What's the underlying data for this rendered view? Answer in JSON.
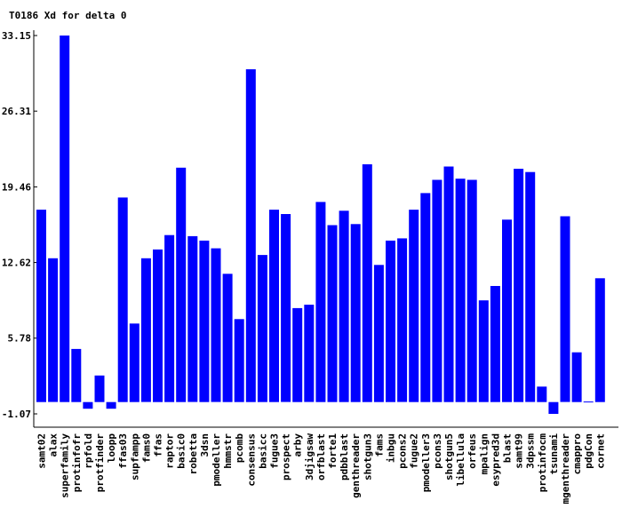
{
  "chart_data": {
    "type": "bar",
    "title": "T0186 Xd for delta 0",
    "xlabel": "",
    "ylabel": "",
    "ylim": [
      -1.07,
      33.15
    ],
    "yticks": [
      "33.15",
      "26.31",
      "19.46",
      "12.62",
      "5.78",
      "-1.07"
    ],
    "grid": false,
    "colors": {
      "bar": "#0000ff",
      "axis": "#000000",
      "background": "#ffffff"
    },
    "categories": [
      "samt02",
      "alax",
      "superfamily",
      "protinfofr",
      "rpfold",
      "protfinder",
      "loopp",
      "ffas03",
      "supfampp",
      "fams0",
      "ffas",
      "raptor",
      "basic0",
      "robetta",
      "3dsn",
      "pmodeller",
      "hmmstr",
      "pcomb",
      "consensus",
      "basicc",
      "fugue3",
      "prospect",
      "arby",
      "3djigsaw",
      "orfblast",
      "forte1",
      "pdbblast",
      "genthreader",
      "shotgun3",
      "fams",
      "inbgu",
      "pcons2",
      "fugue2",
      "pmodeller3",
      "pcons3",
      "shotgun5",
      "libellula",
      "orfeus",
      "mpalign",
      "esypred3d",
      "blast",
      "samt99",
      "3dpssm",
      "protinfocm",
      "tsunami",
      "mgenthreader",
      "cmappro",
      "pdgCon",
      "cornet"
    ],
    "values": [
      17.4,
      13.0,
      33.15,
      4.8,
      -0.6,
      2.4,
      -0.6,
      18.5,
      7.1,
      13.0,
      13.8,
      15.1,
      21.2,
      15.0,
      14.6,
      13.9,
      11.6,
      7.5,
      30.1,
      13.3,
      17.4,
      17.0,
      8.5,
      8.8,
      18.1,
      16.0,
      17.3,
      16.1,
      21.5,
      12.4,
      14.6,
      14.8,
      17.4,
      18.9,
      20.1,
      21.3,
      20.2,
      20.1,
      9.2,
      10.5,
      16.5,
      21.1,
      20.8,
      1.4,
      -1.07,
      16.8,
      4.5,
      0.05,
      11.2
    ]
  }
}
